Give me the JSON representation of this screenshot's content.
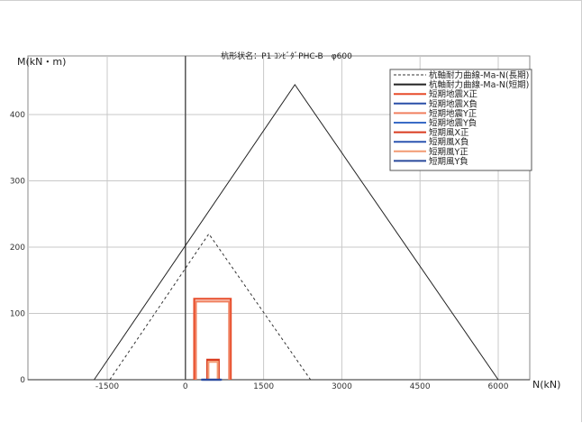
{
  "chart_data": {
    "type": "line",
    "title": "杭形状名：P1 ｺﾝﾋﾞﾀﾞPHC-B　φ600",
    "xlabel": "N(kN)",
    "ylabel": "M(kN・m)",
    "xlim": [
      -1500,
      6000
    ],
    "ylim": [
      0,
      400
    ],
    "x_ticks": [
      -1500,
      0,
      1500,
      3000,
      4500,
      6000
    ],
    "y_ticks": [
      0,
      100,
      200,
      300,
      400
    ],
    "grid": true,
    "legend_position": "top-right",
    "series": [
      {
        "name": "杭軸耐力曲線-Ma-N(長期)",
        "color": "#333333",
        "dash": true,
        "points": [
          [
            -1450,
            0
          ],
          [
            450,
            220
          ],
          [
            2400,
            0
          ]
        ]
      },
      {
        "name": "杭軸耐力曲線-Ma-N(短期)",
        "color": "#222222",
        "dash": false,
        "points": [
          [
            -1750,
            0
          ],
          [
            2100,
            445
          ],
          [
            6000,
            0
          ]
        ]
      },
      {
        "name": "短期地震X正",
        "color": "#e74c2a",
        "dash": false,
        "points": [
          [
            170,
            0
          ],
          [
            170,
            122
          ],
          [
            870,
            122
          ],
          [
            870,
            0
          ]
        ]
      },
      {
        "name": "短期地震X負",
        "color": "#2a4fa8",
        "dash": false,
        "points": [
          [
            230,
            0
          ],
          [
            230,
            0
          ]
        ]
      },
      {
        "name": "短期地震Y正",
        "color": "#f08060",
        "dash": false,
        "points": [
          [
            200,
            0
          ],
          [
            200,
            118
          ],
          [
            840,
            118
          ],
          [
            840,
            0
          ]
        ]
      },
      {
        "name": "短期地震Y負",
        "color": "#3a6bc6",
        "dash": false,
        "points": [
          [
            260,
            0
          ],
          [
            260,
            0
          ]
        ]
      },
      {
        "name": "短期風X正",
        "color": "#d93b1f",
        "dash": false,
        "points": [
          [
            420,
            0
          ],
          [
            420,
            30
          ],
          [
            640,
            30
          ],
          [
            640,
            0
          ]
        ]
      },
      {
        "name": "短期風X負",
        "color": "#2c55b0",
        "dash": false,
        "points": [
          [
            300,
            0
          ],
          [
            700,
            0
          ]
        ]
      },
      {
        "name": "短期風Y正",
        "color": "#f29a72",
        "dash": false,
        "points": [
          [
            440,
            0
          ],
          [
            440,
            27
          ],
          [
            620,
            27
          ],
          [
            620,
            0
          ]
        ]
      },
      {
        "name": "短期風Y負",
        "color": "#2a4a9c",
        "dash": false,
        "points": [
          [
            320,
            0
          ],
          [
            680,
            0
          ]
        ]
      }
    ]
  }
}
